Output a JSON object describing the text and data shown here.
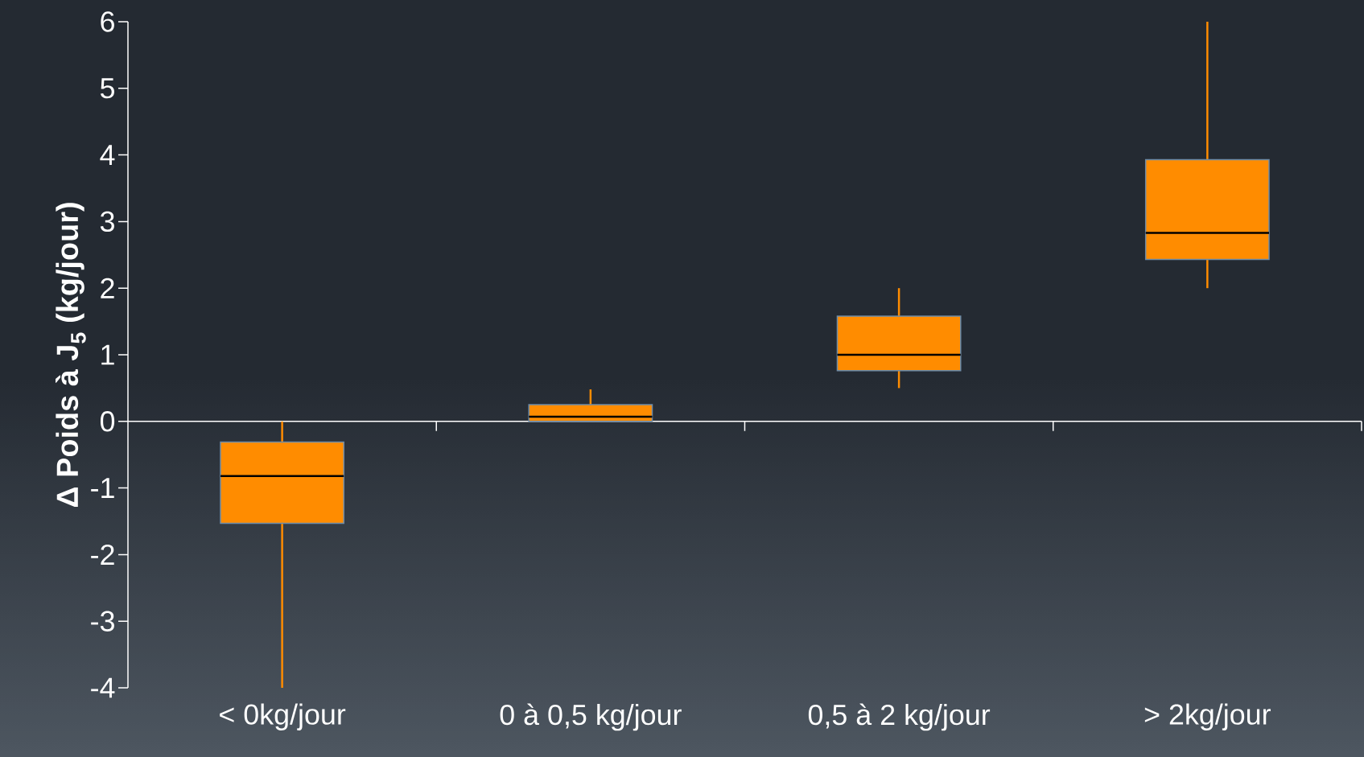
{
  "chart_data": {
    "type": "box",
    "ylabel": "Δ Poids à J$_{5}$ (kg/jour)",
    "categories": [
      "< 0kg/jour",
      "0 à 0,5 kg/jour",
      "0,5 à 2 kg/jour",
      "> 2kg/jour"
    ],
    "color": "#ff8c00",
    "boxes": [
      {
        "low": -4,
        "q1": -1.53,
        "median": -0.82,
        "q3": -0.31,
        "high": 0
      },
      {
        "low": 0,
        "q1": 0,
        "median": 0.07,
        "q3": 0.25,
        "high": 0.48
      },
      {
        "low": 0.5,
        "q1": 0.76,
        "median": 1.0,
        "q3": 1.58,
        "high": 2
      },
      {
        "low": 2,
        "q1": 2.43,
        "median": 2.83,
        "q3": 3.93,
        "high": 6
      }
    ],
    "ylim": [
      -4,
      6
    ],
    "yticks": [
      -4,
      -3,
      -2,
      -1,
      0,
      1,
      2,
      3,
      4,
      5,
      6
    ]
  }
}
